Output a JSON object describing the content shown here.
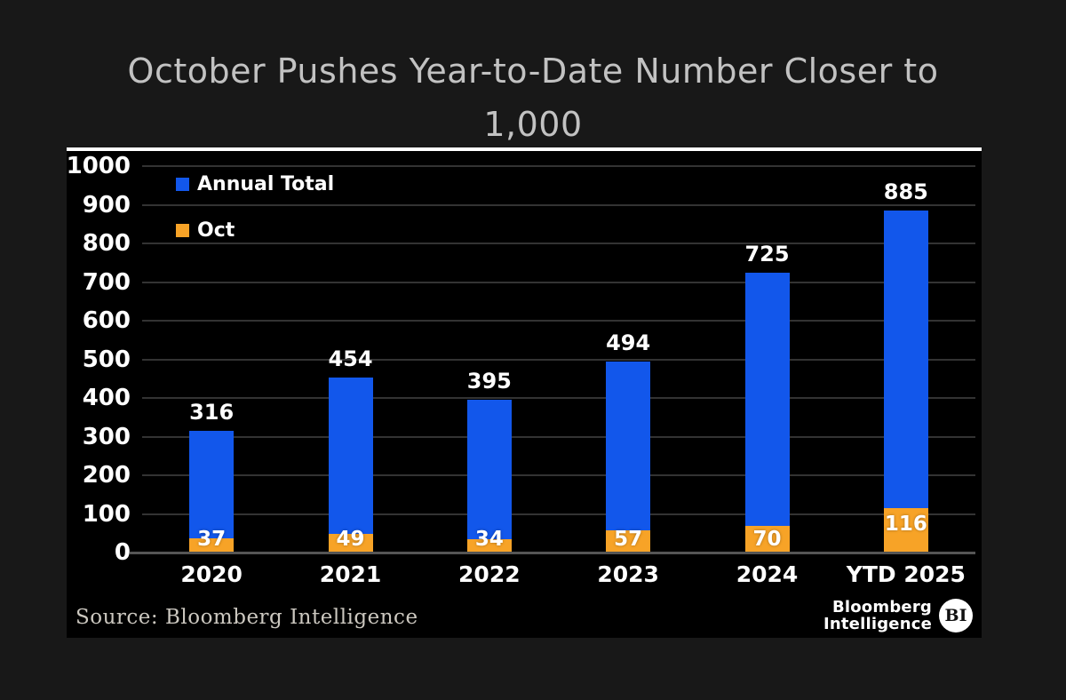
{
  "title": {
    "line1": "October Pushes Year-to-Date Number Closer to",
    "line2": "1,000"
  },
  "chart_data": {
    "type": "bar",
    "bar_style": "overlay-stacked",
    "title": "October Pushes Year-to-Date Number Closer to 1,000",
    "categories": [
      "2020",
      "2021",
      "2022",
      "2023",
      "2024",
      "YTD 2025"
    ],
    "series": [
      {
        "name": "Annual Total",
        "color": "#1257eb",
        "values": [
          316,
          454,
          395,
          494,
          725,
          885
        ]
      },
      {
        "name": "Oct",
        "color": "#f7a327",
        "values": [
          37,
          49,
          34,
          57,
          70,
          116
        ]
      }
    ],
    "xlabel": "",
    "ylabel": "",
    "ylim": [
      0,
      1000
    ],
    "yticks": [
      0,
      100,
      200,
      300,
      400,
      500,
      600,
      700,
      800,
      900,
      1000
    ],
    "grid": true,
    "legend_position": "top-left",
    "value_labels": true
  },
  "source": {
    "label": "Source: Bloomberg Intelligence"
  },
  "branding": {
    "line1": "Bloomberg",
    "line2": "Intelligence",
    "badge": "BI"
  },
  "colors": {
    "page_background": "#181818",
    "panel_background": "#000000",
    "panel_top_border": "#ffffff",
    "title_text": "#c2c2c2",
    "axis_text": "#ffffff",
    "gridline": "#333333",
    "baseline": "#555555",
    "annual_total_blue": "#1257eb",
    "oct_orange": "#f7a327",
    "source_text": "#ccc8c0"
  }
}
